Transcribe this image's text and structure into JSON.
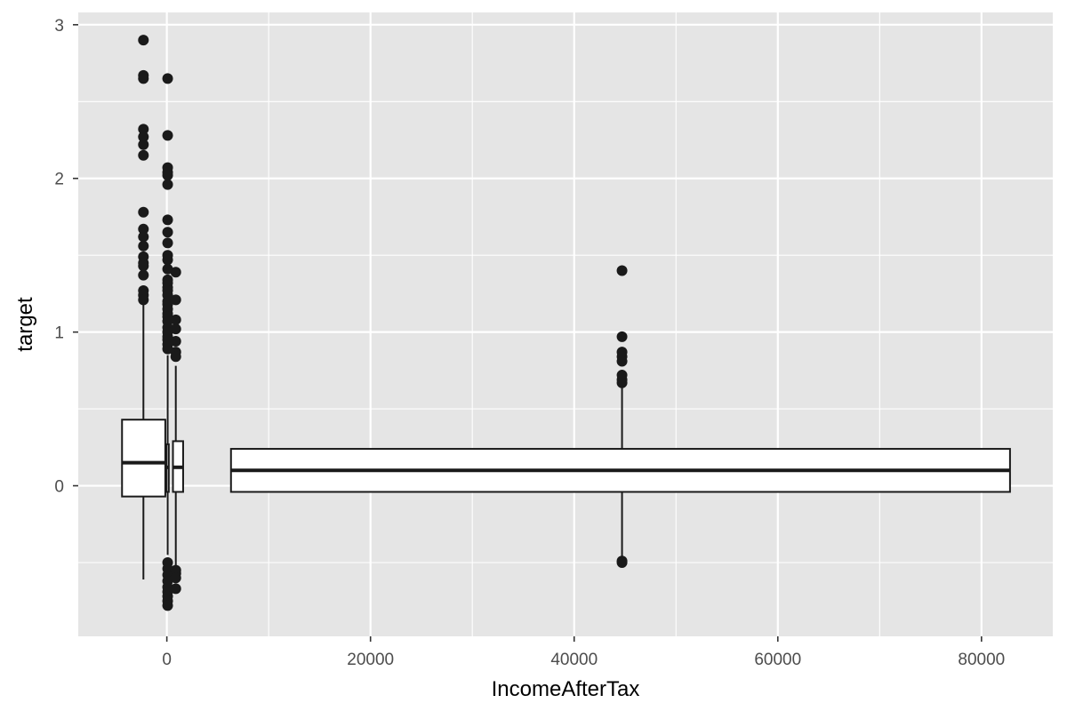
{
  "chart_data": {
    "type": "boxplot",
    "title": "",
    "xlabel": "IncomeAfterTax",
    "ylabel": "target",
    "xlim": [
      -8700,
      87000
    ],
    "ylim": [
      -0.98,
      3.08
    ],
    "x_ticks": [
      0,
      20000,
      40000,
      60000,
      80000
    ],
    "x_tick_labels": [
      "0",
      "20000",
      "40000",
      "60000",
      "80000"
    ],
    "y_ticks": [
      0,
      1,
      2,
      3
    ],
    "y_tick_labels": [
      "0",
      "1",
      "2",
      "3"
    ],
    "grid": true,
    "background": "#e5e5e5",
    "grid_color": "#ffffff",
    "box_fill": "#ffffff",
    "line_color": "#1a1a1a",
    "point_color": "#1a1a1a",
    "boxes": [
      {
        "x": -2300,
        "x_min": -4400,
        "x_max": -150,
        "q1": -0.07,
        "median": 0.15,
        "q3": 0.43,
        "whisker_low": -0.61,
        "whisker_high": 1.18,
        "outliers": [
          2.9,
          2.67,
          2.65,
          2.32,
          2.27,
          2.22,
          2.15,
          1.78,
          1.67,
          1.62,
          1.56,
          1.49,
          1.45,
          1.43,
          1.37,
          1.27,
          1.24,
          1.21
        ]
      },
      {
        "x": 80,
        "x_min": -30,
        "x_max": 190,
        "q1": -0.04,
        "median": 0.12,
        "q3": 0.27,
        "whisker_low": -0.45,
        "whisker_high": 0.85,
        "outliers": [
          2.65,
          2.28,
          2.07,
          2.04,
          2.02,
          1.96,
          1.73,
          1.65,
          1.58,
          1.5,
          1.47,
          1.41,
          1.34,
          1.32,
          1.29,
          1.27,
          1.24,
          1.2,
          1.18,
          1.15,
          1.12,
          1.1,
          1.07,
          1.03,
          1.0,
          0.97,
          0.95,
          0.92,
          0.89,
          -0.5,
          -0.54,
          -0.58,
          -0.62,
          -0.66,
          -0.69,
          -0.72,
          -0.75,
          -0.78
        ]
      },
      {
        "x": 880,
        "x_min": 600,
        "x_max": 1600,
        "q1": -0.04,
        "median": 0.12,
        "q3": 0.29,
        "whisker_low": -0.53,
        "whisker_high": 0.78,
        "outliers": [
          1.39,
          1.21,
          1.08,
          1.02,
          0.94,
          0.87,
          0.84,
          -0.55,
          -0.57,
          -0.6,
          -0.67
        ]
      },
      {
        "x": 44700,
        "x_min": 6300,
        "x_max": 82800,
        "q1": -0.04,
        "median": 0.1,
        "q3": 0.24,
        "whisker_low": -0.47,
        "whisker_high": 0.66,
        "outliers": [
          1.4,
          0.97,
          0.87,
          0.84,
          0.81,
          0.72,
          0.69,
          0.67,
          -0.49,
          -0.5
        ]
      }
    ]
  }
}
